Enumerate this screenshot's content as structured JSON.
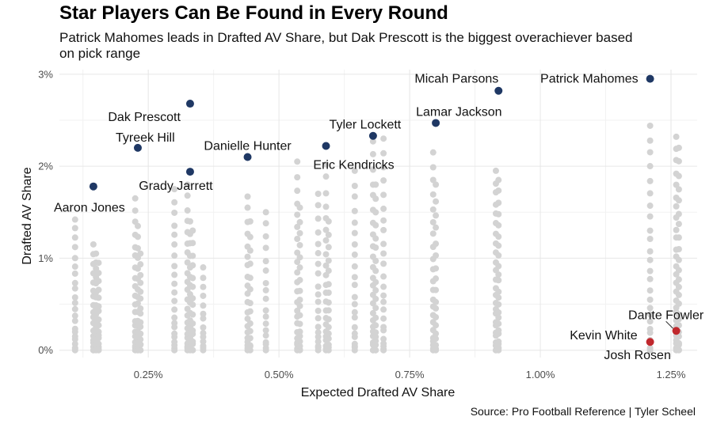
{
  "chart_data": {
    "type": "scatter",
    "title": "Star Players Can Be Found in Every Round",
    "subtitle": "Patrick Mahomes leads in Drafted AV Share, but Dak Prescott is the biggest overachiever based\n on pick range",
    "caption": "Source: Pro Football Reference | Tyler Scheel",
    "xlabel": "Expected Drafted AV Share",
    "ylabel": "Drafted AV Share",
    "xlim": [
      0.08,
      1.3
    ],
    "ylim": [
      -0.08,
      3.05
    ],
    "x_ticks": [
      {
        "value": 0.25,
        "label": "0.25%"
      },
      {
        "value": 0.5,
        "label": "0.50%"
      },
      {
        "value": 0.75,
        "label": "0.75%"
      },
      {
        "value": 1.0,
        "label": "1.00%"
      },
      {
        "value": 1.25,
        "label": "1.25%"
      }
    ],
    "y_ticks": [
      {
        "value": 0,
        "label": "0%"
      },
      {
        "value": 1,
        "label": "1%"
      },
      {
        "value": 2,
        "label": "2%"
      },
      {
        "value": 3,
        "label": "3%"
      }
    ],
    "grid": true,
    "colors": {
      "background_points": "#d3d3d3",
      "highlight": "#1f3864",
      "bust": "#c0282d"
    },
    "background_columns": [
      {
        "x": 0.11,
        "n": 22,
        "max": 1.42
      },
      {
        "x": 0.145,
        "n": 18,
        "max": 1.15
      },
      {
        "x": 0.15,
        "n": 20,
        "max": 1.05
      },
      {
        "x": 0.155,
        "n": 16,
        "max": 0.95
      },
      {
        "x": 0.225,
        "n": 20,
        "max": 1.65
      },
      {
        "x": 0.23,
        "n": 18,
        "max": 1.35
      },
      {
        "x": 0.235,
        "n": 16,
        "max": 1.05
      },
      {
        "x": 0.3,
        "n": 22,
        "max": 1.75
      },
      {
        "x": 0.325,
        "n": 22,
        "max": 1.8
      },
      {
        "x": 0.33,
        "n": 18,
        "max": 1.4
      },
      {
        "x": 0.335,
        "n": 16,
        "max": 1.3
      },
      {
        "x": 0.355,
        "n": 14,
        "max": 0.9
      },
      {
        "x": 0.44,
        "n": 20,
        "max": 1.67
      },
      {
        "x": 0.445,
        "n": 14,
        "max": 1.4
      },
      {
        "x": 0.475,
        "n": 18,
        "max": 1.5
      },
      {
        "x": 0.535,
        "n": 22,
        "max": 2.05
      },
      {
        "x": 0.54,
        "n": 18,
        "max": 1.55
      },
      {
        "x": 0.575,
        "n": 20,
        "max": 1.7
      },
      {
        "x": 0.59,
        "n": 22,
        "max": 2.02
      },
      {
        "x": 0.595,
        "n": 16,
        "max": 1.4
      },
      {
        "x": 0.645,
        "n": 22,
        "max": 1.95
      },
      {
        "x": 0.68,
        "n": 24,
        "max": 2.27
      },
      {
        "x": 0.685,
        "n": 20,
        "max": 1.8
      },
      {
        "x": 0.7,
        "n": 24,
        "max": 2.3
      },
      {
        "x": 0.795,
        "n": 22,
        "max": 2.15
      },
      {
        "x": 0.8,
        "n": 18,
        "max": 1.8
      },
      {
        "x": 0.915,
        "n": 26,
        "max": 1.95
      },
      {
        "x": 0.92,
        "n": 24,
        "max": 1.85
      },
      {
        "x": 1.21,
        "n": 26,
        "max": 2.44
      },
      {
        "x": 1.26,
        "n": 28,
        "max": 2.32
      },
      {
        "x": 1.265,
        "n": 24,
        "max": 2.2
      }
    ],
    "highlighted_players": [
      {
        "name": "Patrick Mahomes",
        "x": 1.21,
        "y": 2.95,
        "color": "#1f3864",
        "label_dx": -15,
        "label_dy": 5,
        "anchor": "end"
      },
      {
        "name": "Micah Parsons",
        "x": 0.92,
        "y": 2.82,
        "color": "#1f3864",
        "label_dx": 0,
        "label_dy": -10,
        "anchor": "end"
      },
      {
        "name": "Lamar Jackson",
        "x": 0.8,
        "y": 2.47,
        "color": "#1f3864",
        "label_dx": -25,
        "label_dy": -9,
        "anchor": "start"
      },
      {
        "name": "Dak Prescott",
        "x": 0.33,
        "y": 2.68,
        "color": "#1f3864",
        "label_dx": -12,
        "label_dy": 22,
        "anchor": "end"
      },
      {
        "name": "Tyreek Hill",
        "x": 0.23,
        "y": 2.2,
        "color": "#1f3864",
        "label_dx": -28,
        "label_dy": -8,
        "anchor": "start"
      },
      {
        "name": "Danielle Hunter",
        "x": 0.44,
        "y": 2.1,
        "color": "#1f3864",
        "label_dx": 0,
        "label_dy": -9,
        "anchor": "middle"
      },
      {
        "name": "Tyler Lockett",
        "x": 0.68,
        "y": 2.33,
        "color": "#1f3864",
        "label_dx": -10,
        "label_dy": -9,
        "anchor": "middle"
      },
      {
        "name": "Eric Kendricks",
        "x": 0.59,
        "y": 2.22,
        "color": "#1f3864",
        "label_dx": 35,
        "label_dy": 29,
        "anchor": "middle"
      },
      {
        "name": "Grady Jarrett",
        "x": 0.33,
        "y": 1.94,
        "color": "#1f3864",
        "label_dx": -18,
        "label_dy": 23,
        "anchor": "middle"
      },
      {
        "name": "Aaron Jones",
        "x": 0.145,
        "y": 1.78,
        "color": "#1f3864",
        "label_dx": -5,
        "label_dy": 32,
        "anchor": "middle"
      },
      {
        "name": "Dante Fowler",
        "x": 1.26,
        "y": 0.21,
        "color": "#c0282d",
        "label_dx": -13,
        "label_dy": -15,
        "anchor": "middle"
      },
      {
        "name": "Kevin White",
        "x": 1.21,
        "y": 0.09,
        "color": "#c0282d",
        "label_dx": -16,
        "label_dy": -3,
        "anchor": "end"
      },
      {
        "name": "Josh Rosen",
        "x": 1.21,
        "y": 0.09,
        "color": "#c0282d",
        "label_dx": -16,
        "label_dy": 22,
        "anchor": "middle"
      }
    ]
  }
}
